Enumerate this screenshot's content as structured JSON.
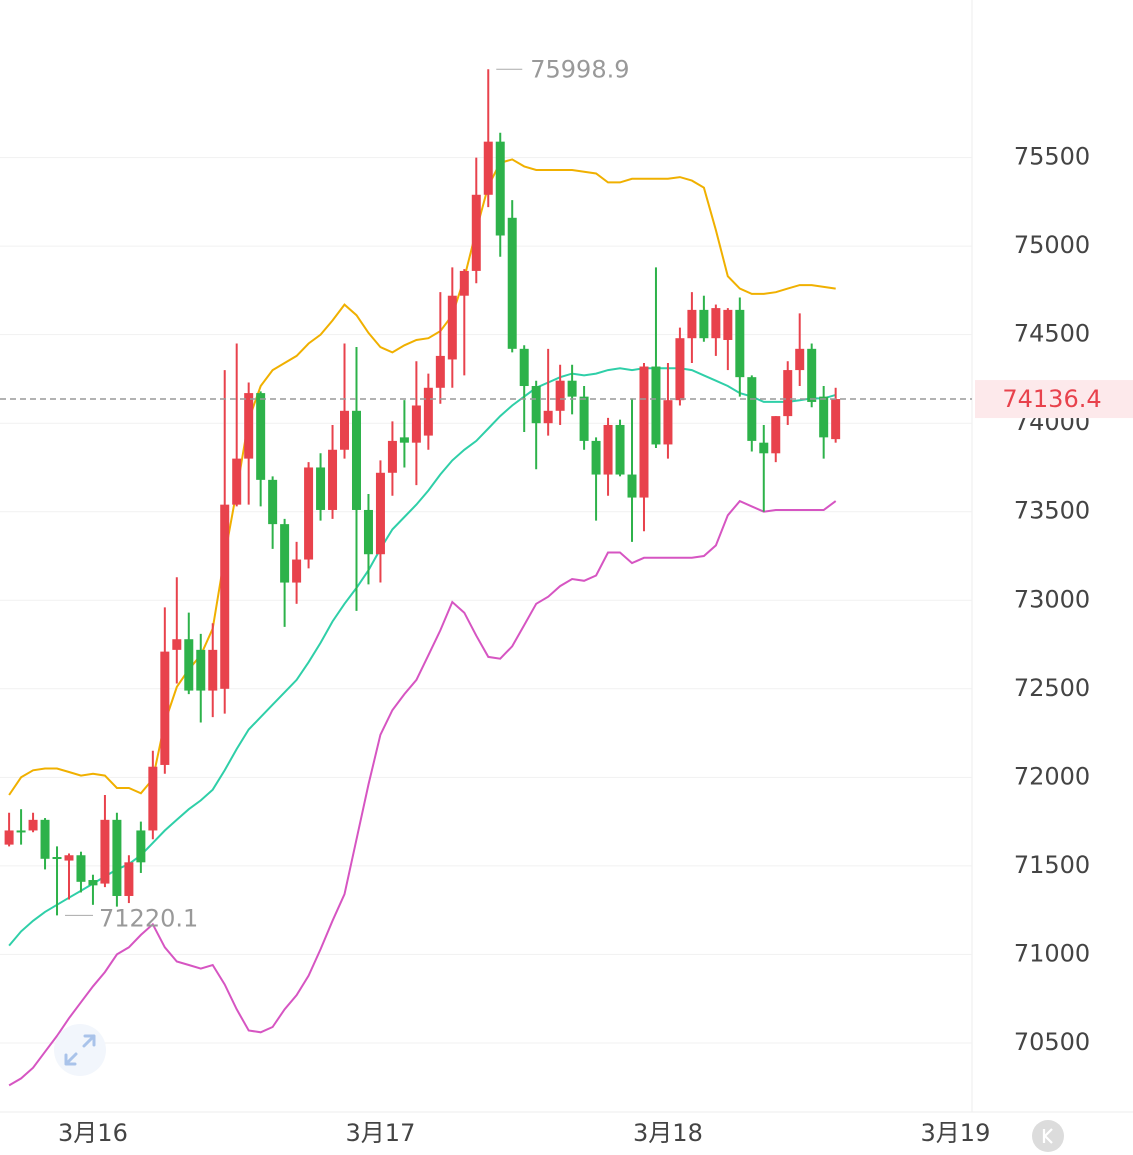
{
  "chart_data": {
    "type": "candlestick",
    "categories": [
      null,
      null,
      null,
      null,
      null,
      null,
      null,
      "3月16",
      null,
      null,
      null,
      null,
      null,
      null,
      null,
      null,
      null,
      null,
      null,
      null,
      null,
      null,
      null,
      null,
      null,
      null,
      null,
      null,
      null,
      null,
      null,
      "3月17",
      null,
      null,
      null,
      null,
      null,
      null,
      null,
      null,
      null,
      null,
      null,
      null,
      null,
      null,
      null,
      null,
      null,
      null,
      null,
      null,
      null,
      null,
      null,
      "3月18",
      null,
      null,
      null,
      null,
      null,
      null,
      null,
      null,
      null,
      null,
      null,
      null,
      null,
      null,
      null,
      null,
      null,
      null,
      null,
      null,
      null,
      null,
      null,
      "3月19"
    ],
    "open": [
      71620,
      71700,
      71700,
      71760,
      71550,
      71530,
      71560,
      71420,
      71400,
      71760,
      71330,
      71700,
      71700,
      72070,
      72720,
      72780,
      72720,
      72490,
      72500,
      73540,
      73800,
      74170,
      73680,
      73430,
      73100,
      73230,
      73750,
      73510,
      73850,
      74070,
      73510,
      73260,
      73720,
      73920,
      73890,
      73930,
      74200,
      74360,
      74720,
      74860,
      75290,
      75590,
      75160,
      74420,
      74210,
      74000,
      74070,
      74240,
      74150,
      73900,
      73710,
      73990,
      73710,
      73580,
      74320,
      73880,
      74130,
      74480,
      74640,
      74480,
      74470,
      74640,
      74260,
      73890,
      73830,
      74040,
      74300,
      74420,
      74150,
      73910,
      null,
      null,
      null,
      null,
      null,
      null,
      null,
      null,
      null,
      null
    ],
    "high": [
      71800,
      71820,
      71800,
      71770,
      71610,
      71570,
      71580,
      71450,
      71900,
      71800,
      71560,
      71750,
      72150,
      72960,
      73130,
      72930,
      72810,
      72870,
      74300,
      74450,
      74230,
      74180,
      73700,
      73460,
      73330,
      73780,
      73830,
      73990,
      74450,
      74430,
      73600,
      73790,
      74010,
      74130,
      74350,
      74280,
      74740,
      74880,
      74870,
      75500,
      75998.9,
      75640,
      75260,
      74440,
      74240,
      74420,
      74330,
      74330,
      74210,
      73920,
      74030,
      74020,
      74140,
      74340,
      74880,
      74340,
      74540,
      74740,
      74720,
      74670,
      74650,
      74710,
      74270,
      73990,
      74040,
      74350,
      74620,
      74450,
      74210,
      74200,
      null,
      null,
      null,
      null,
      null,
      null,
      null,
      null,
      null,
      null
    ],
    "low": [
      71610,
      71620,
      71690,
      71480,
      71220.1,
      71310,
      71350,
      71280,
      71380,
      71270,
      71290,
      71460,
      71650,
      72020,
      72530,
      72470,
      72310,
      72340,
      72360,
      73530,
      73540,
      73530,
      73290,
      72850,
      72980,
      73180,
      73450,
      73460,
      73800,
      72940,
      73090,
      73100,
      73590,
      73750,
      73650,
      73850,
      74110,
      74200,
      74270,
      74790,
      75220,
      74940,
      74400,
      73950,
      73740,
      73930,
      73990,
      74050,
      73850,
      73450,
      73590,
      73700,
      73330,
      73390,
      73860,
      73800,
      74100,
      74340,
      74460,
      74380,
      74300,
      74150,
      73840,
      73500,
      73780,
      73990,
      74210,
      74090,
      73800,
      73890,
      null,
      null,
      null,
      null,
      null,
      null,
      null,
      null,
      null,
      null
    ],
    "close": [
      71700,
      71690,
      71760,
      71540,
      71540,
      71560,
      71410,
      71390,
      71760,
      71330,
      71520,
      71520,
      72060,
      72710,
      72780,
      72490,
      72490,
      72720,
      73540,
      73800,
      74170,
      73680,
      73430,
      73100,
      73230,
      73750,
      73510,
      73850,
      74070,
      73510,
      73260,
      73720,
      73900,
      73890,
      74100,
      74200,
      74380,
      74720,
      74860,
      75290,
      75590,
      75060,
      74420,
      74210,
      74000,
      74070,
      74240,
      74150,
      73900,
      73710,
      73990,
      73710,
      73580,
      74320,
      73880,
      74130,
      74480,
      74640,
      74480,
      74650,
      74640,
      74260,
      73900,
      73830,
      74040,
      74300,
      74420,
      74120,
      73920,
      74136.4,
      null,
      null,
      null,
      null,
      null,
      null,
      null,
      null,
      null,
      null
    ],
    "up_color": "#e8424c",
    "down_color": "#2db24a",
    "bands": [
      {
        "color": "#f0b000",
        "values": [
          71900,
          72000,
          72040,
          72050,
          72050,
          72030,
          72010,
          72020,
          72010,
          71940,
          71940,
          71910,
          71990,
          72310,
          72510,
          72610,
          72690,
          72840,
          73250,
          73620,
          74020,
          74210,
          74300,
          74340,
          74380,
          74450,
          74500,
          74580,
          74670,
          74610,
          74510,
          74430,
          74400,
          74440,
          74470,
          74480,
          74520,
          74610,
          74820,
          75090,
          75340,
          75470,
          75490,
          75450,
          75430,
          75430,
          75430,
          75430,
          75420,
          75410,
          75360,
          75360,
          75380,
          75380,
          75380,
          75380,
          75390,
          75370,
          75330,
          75090,
          74830,
          74760,
          74730,
          74730,
          74740,
          74760,
          74780,
          74780,
          74770,
          74760,
          null,
          null,
          null,
          null,
          null,
          null,
          null,
          null,
          null,
          null
        ]
      },
      {
        "color": "#2fcfa8",
        "values": [
          71050,
          71130,
          71190,
          71240,
          71280,
          71320,
          71360,
          71400,
          71440,
          71480,
          71510,
          71560,
          71630,
          71700,
          71760,
          71820,
          71870,
          71930,
          72040,
          72160,
          72270,
          72340,
          72410,
          72480,
          72550,
          72650,
          72760,
          72880,
          72980,
          73070,
          73170,
          73290,
          73400,
          73470,
          73540,
          73620,
          73710,
          73790,
          73850,
          73900,
          73970,
          74040,
          74100,
          74150,
          74200,
          74230,
          74260,
          74280,
          74270,
          74280,
          74300,
          74310,
          74300,
          74310,
          74310,
          74310,
          74310,
          74300,
          74270,
          74240,
          74210,
          74170,
          74150,
          74120,
          74120,
          74120,
          74130,
          74140,
          74140,
          74160,
          null,
          null,
          null,
          null,
          null,
          null,
          null,
          null,
          null,
          null
        ]
      },
      {
        "color": "#d655c2",
        "values": [
          70260,
          70300,
          70360,
          70450,
          70540,
          70640,
          70730,
          70820,
          70900,
          71000,
          71040,
          71110,
          71170,
          71040,
          70960,
          70940,
          70920,
          70940,
          70830,
          70690,
          70570,
          70560,
          70590,
          70690,
          70770,
          70880,
          71030,
          71190,
          71340,
          71650,
          71960,
          72240,
          72380,
          72470,
          72550,
          72690,
          72830,
          72990,
          72930,
          72800,
          72680,
          72670,
          72740,
          72860,
          72980,
          73020,
          73080,
          73120,
          73110,
          73140,
          73270,
          73270,
          73210,
          73240,
          73240,
          73240,
          73240,
          73240,
          73250,
          73310,
          73480,
          73560,
          73530,
          73500,
          73510,
          73510,
          73510,
          73510,
          73510,
          73560,
          null,
          null,
          null,
          null,
          null,
          null,
          null,
          null,
          null,
          null
        ]
      }
    ],
    "high_label": 75998.9,
    "low_label": 71220.1,
    "last_price": 74136.4,
    "ylim": [
      70110,
      76390
    ],
    "yticks": [
      70500,
      71000,
      71500,
      72000,
      72500,
      73000,
      73500,
      74000,
      74500,
      75000,
      75500
    ],
    "grid": true
  }
}
